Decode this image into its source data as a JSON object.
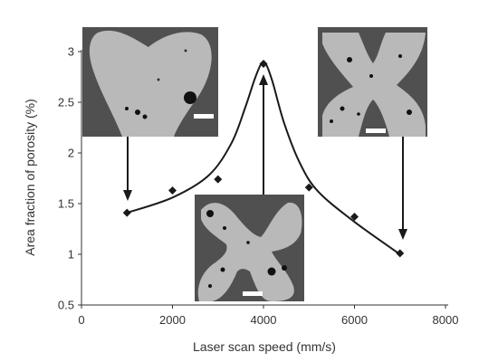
{
  "chart_data": {
    "type": "scatter",
    "title": "",
    "xlabel": "Laser scan speed  (mm/s)",
    "ylabel": "Area fraction of porosity (%)",
    "xlim": [
      0,
      8000
    ],
    "ylim": [
      0.5,
      3.0
    ],
    "x_ticks": [
      0,
      2000,
      4000,
      6000,
      8000
    ],
    "y_ticks": [
      0.5,
      1,
      1.5,
      2,
      2.5,
      3
    ],
    "grid": false,
    "legend": "none",
    "series": [
      {
        "marker": "diamond",
        "color": "#1a1a1a",
        "x": [
          1000,
          2000,
          3000,
          4000,
          5000,
          6000,
          7000
        ],
        "y": [
          1.41,
          1.63,
          1.74,
          2.88,
          1.66,
          1.37,
          1.01
        ]
      }
    ],
    "trend_curve": {
      "color": "#1a1a1a",
      "x": [
        1000,
        2000,
        2800,
        3300,
        3600,
        3800,
        3950,
        4050,
        4200,
        4450,
        4800,
        5200,
        6000,
        7000
      ],
      "y": [
        1.41,
        1.56,
        1.78,
        2.1,
        2.45,
        2.72,
        2.88,
        2.88,
        2.7,
        2.3,
        1.9,
        1.62,
        1.32,
        1.0
      ]
    },
    "insets": [
      {
        "name": "micrograph-low-speed",
        "points_to": [
          1000,
          1.41
        ],
        "description": "cross-section at low scan speed"
      },
      {
        "name": "micrograph-peak",
        "points_to": [
          4000,
          2.88
        ],
        "description": "cross-section at peak porosity"
      },
      {
        "name": "micrograph-high-speed",
        "points_to": [
          7000,
          1.01
        ],
        "description": "cross-section at high scan speed"
      }
    ]
  }
}
